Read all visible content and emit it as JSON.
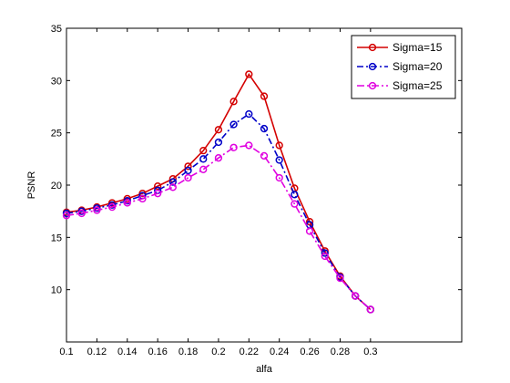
{
  "chart_data": {
    "type": "line",
    "title": "",
    "xlabel": "alfa",
    "ylabel": "PSNR",
    "xlim": [
      0.1,
      0.36
    ],
    "ylim": [
      5,
      35
    ],
    "x_ticks": [
      "0.1",
      "0.12",
      "0.14",
      "0.16",
      "0.18",
      "0.2",
      "0.22",
      "0.24",
      "0.26",
      "0.28",
      "0.3"
    ],
    "y_ticks": [
      "10",
      "15",
      "20",
      "25",
      "30",
      "35"
    ],
    "grid": false,
    "legend_position": "top-right",
    "x": [
      0.1,
      0.11,
      0.12,
      0.13,
      0.14,
      0.15,
      0.16,
      0.17,
      0.18,
      0.19,
      0.2,
      0.21,
      0.22,
      0.23,
      0.24,
      0.25,
      0.26,
      0.27,
      0.28,
      0.29,
      0.3
    ],
    "series": [
      {
        "name": "Sigma=15",
        "color": "#d40000",
        "dash": "",
        "values": [
          17.4,
          17.6,
          17.9,
          18.3,
          18.7,
          19.2,
          19.9,
          20.6,
          21.8,
          23.3,
          25.3,
          28.0,
          30.6,
          28.5,
          23.8,
          19.7,
          16.5,
          13.7,
          11.3,
          9.4,
          8.1
        ]
      },
      {
        "name": "Sigma=20",
        "color": "#0000c8",
        "dash": "7,3,2,3",
        "values": [
          17.3,
          17.5,
          17.8,
          18.1,
          18.5,
          19.0,
          19.5,
          20.3,
          21.4,
          22.5,
          24.1,
          25.8,
          26.8,
          25.4,
          22.4,
          19.1,
          16.2,
          13.5,
          11.2,
          9.4,
          8.1
        ]
      },
      {
        "name": "Sigma=25",
        "color": "#e000e0",
        "dash": "8,3,2,3",
        "values": [
          17.1,
          17.3,
          17.6,
          17.9,
          18.3,
          18.7,
          19.2,
          19.8,
          20.7,
          21.5,
          22.6,
          23.6,
          23.8,
          22.8,
          20.7,
          18.2,
          15.6,
          13.2,
          11.1,
          9.4,
          8.1
        ]
      }
    ]
  }
}
